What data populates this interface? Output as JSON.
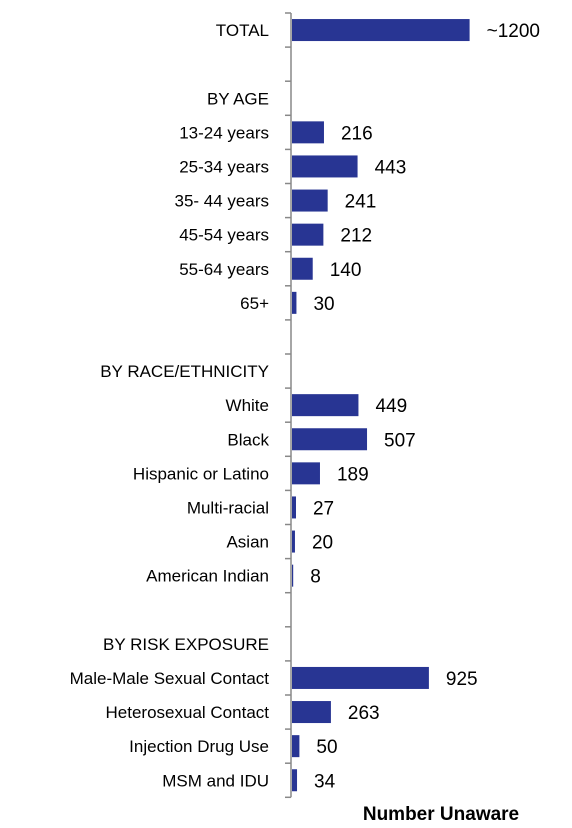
{
  "chart_data": {
    "type": "bar",
    "orientation": "horizontal",
    "xlabel": "Number Unaware",
    "xlim": [
      0,
      1400
    ],
    "bar_color": "#283593",
    "categories": [
      "TOTAL",
      "",
      "BY AGE",
      "13-24 years",
      "25-34 years",
      "35- 44 years",
      "45-54 years",
      "55-64 years",
      "65+",
      "",
      "BY RACE/ETHNICITY",
      "White",
      "Black",
      "Hispanic or Latino",
      "Multi-racial",
      "Asian",
      "American Indian",
      "",
      "BY RISK EXPOSURE",
      "Male-Male Sexual Contact",
      "Heterosexual Contact",
      "Injection Drug Use",
      "MSM and IDU"
    ],
    "values": [
      1200,
      null,
      null,
      216,
      443,
      241,
      212,
      140,
      30,
      null,
      null,
      449,
      507,
      189,
      27,
      20,
      8,
      null,
      null,
      925,
      263,
      50,
      34
    ],
    "data_labels": [
      "~1200",
      "",
      "",
      "216",
      "443",
      "241",
      "212",
      "140",
      "30",
      "",
      "",
      "449",
      "507",
      "189",
      "27",
      "20",
      "8",
      "",
      "",
      "925",
      "263",
      "50",
      "34"
    ],
    "grid": false
  }
}
